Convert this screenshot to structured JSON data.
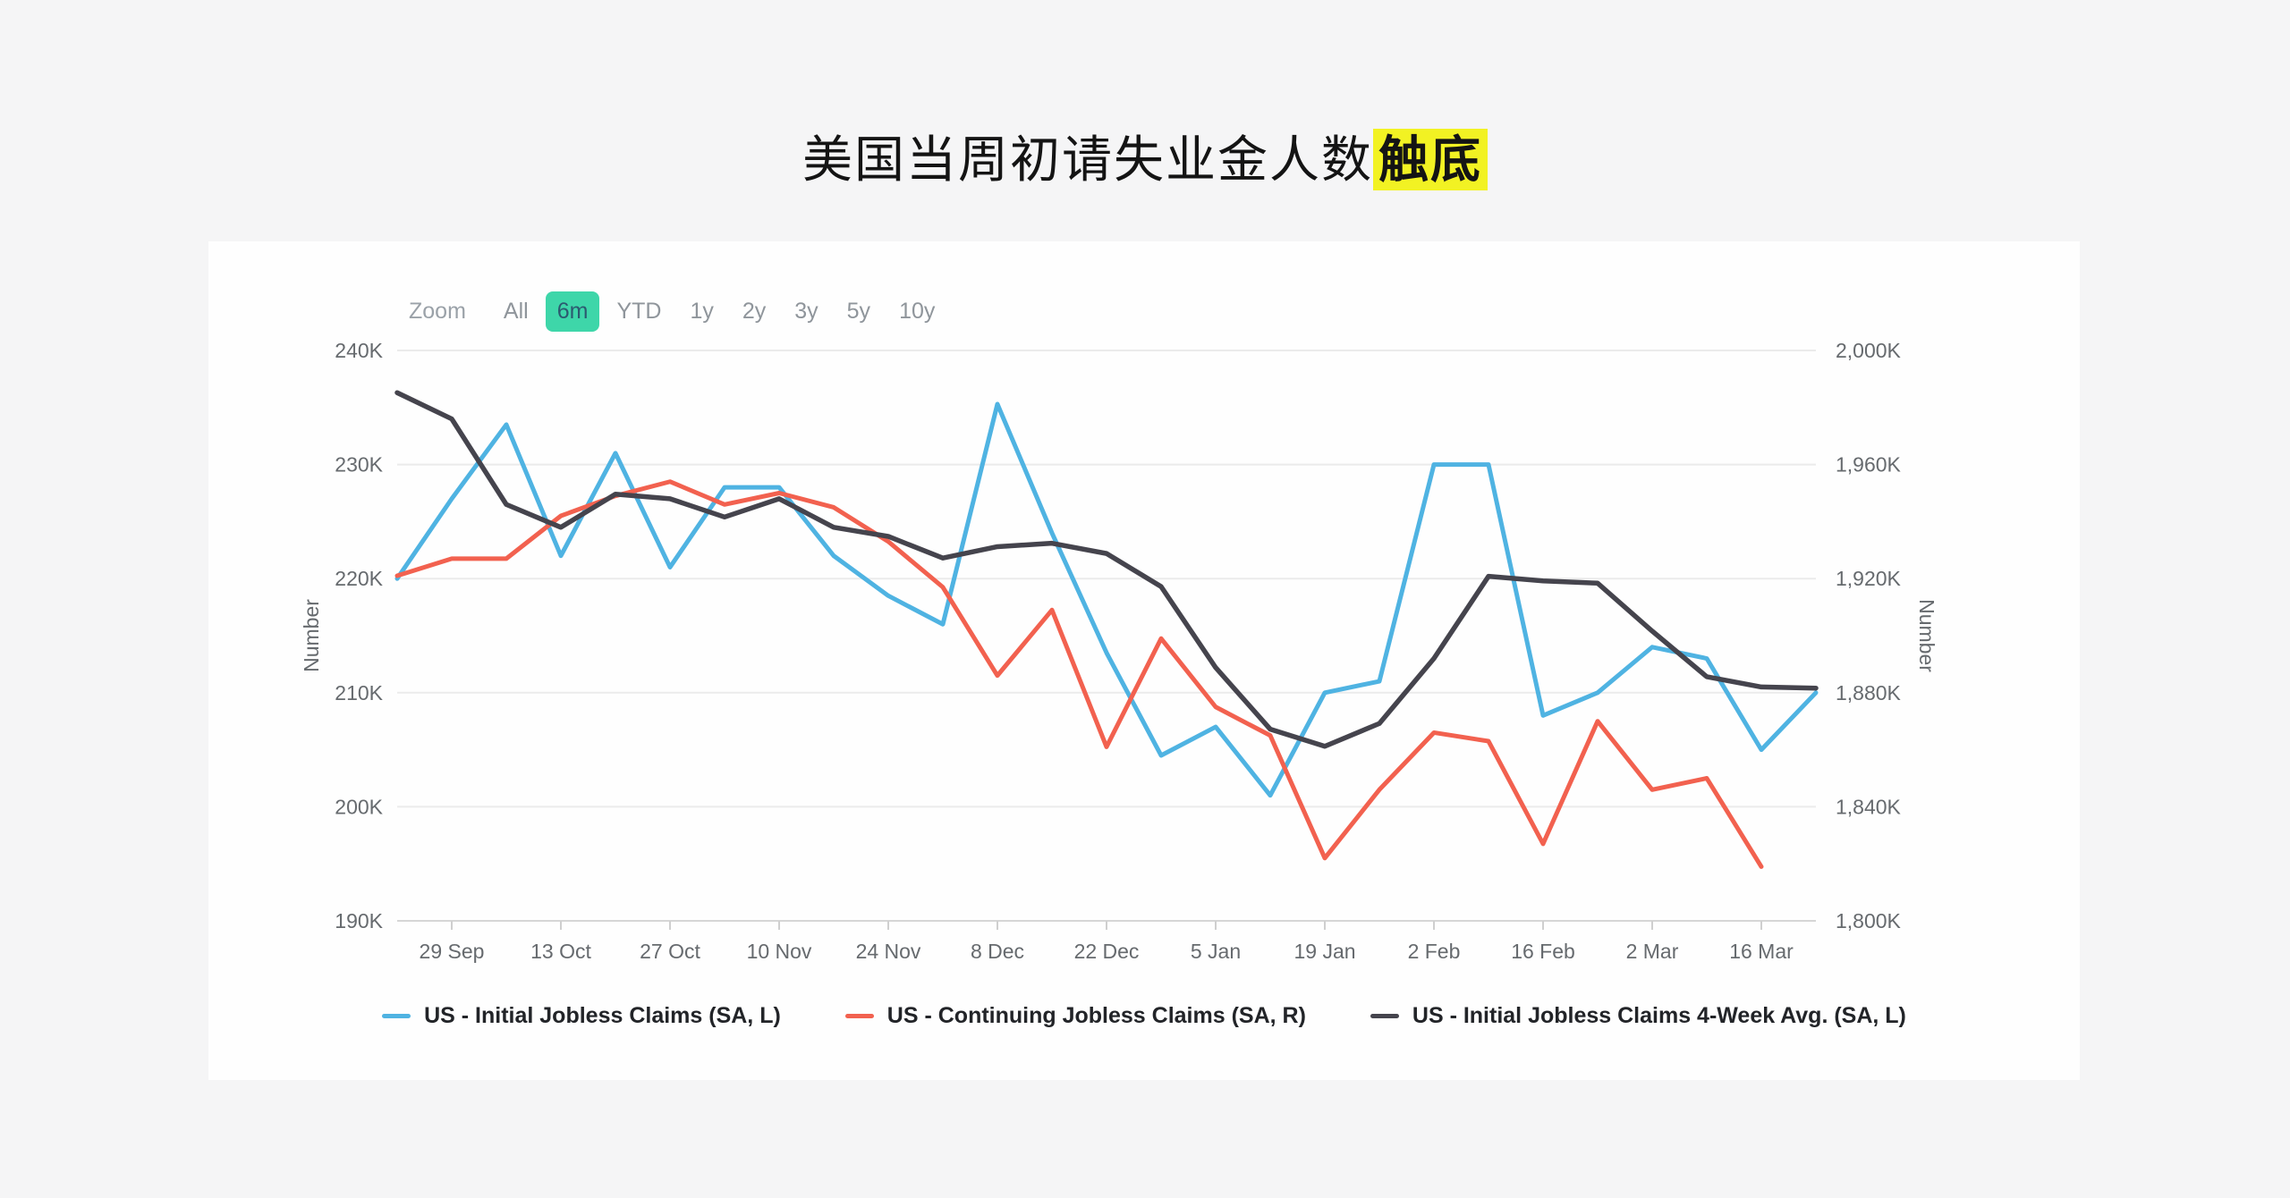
{
  "title": {
    "text": "美国当周初请失业金人数",
    "highlight": "触底",
    "highlight_color": "#f2f223"
  },
  "toolbar": {
    "zoom_label": "Zoom",
    "ranges": [
      "All",
      "6m",
      "YTD",
      "1y",
      "2y",
      "3y",
      "5y",
      "10y"
    ],
    "active": "6m",
    "active_color": "#3ed6a9"
  },
  "chart_data": {
    "type": "line",
    "x_dates": [
      "22 Sep",
      "29 Sep",
      "6 Oct",
      "13 Oct",
      "20 Oct",
      "27 Oct",
      "3 Nov",
      "10 Nov",
      "17 Nov",
      "24 Nov",
      "1 Dec",
      "8 Dec",
      "15 Dec",
      "22 Dec",
      "29 Dec",
      "5 Jan",
      "12 Jan",
      "19 Jan",
      "26 Jan",
      "2 Feb",
      "9 Feb",
      "16 Feb",
      "23 Feb",
      "2 Mar",
      "9 Mar",
      "16 Mar",
      "23 Mar"
    ],
    "x_tick_labels": [
      "29 Sep",
      "13 Oct",
      "27 Oct",
      "10 Nov",
      "24 Nov",
      "8 Dec",
      "22 Dec",
      "5 Jan",
      "19 Jan",
      "2 Feb",
      "16 Feb",
      "2 Mar",
      "16 Mar"
    ],
    "left_axis": {
      "title": "Number",
      "min": 190,
      "max": 240,
      "ticks": [
        "240K",
        "230K",
        "220K",
        "210K",
        "200K",
        "190K"
      ]
    },
    "right_axis": {
      "title": "Number",
      "min": 1800,
      "max": 2000,
      "ticks": [
        "2,000K",
        "1,960K",
        "1,920K",
        "1,880K",
        "1,840K",
        "1,800K"
      ]
    },
    "grid": "horizontal-only",
    "legend_position": "bottom-center",
    "series": [
      {
        "name": "US - Initial Jobless Claims (SA, L)",
        "axis": "left",
        "color": "#4fb3e2",
        "values": [
          220,
          227,
          233.5,
          222,
          231,
          221,
          228,
          228,
          222,
          218.5,
          216,
          235.3,
          224,
          213.5,
          204.5,
          207,
          201,
          210,
          211,
          230,
          230,
          208,
          210,
          214,
          213,
          205,
          210
        ]
      },
      {
        "name": "US - Continuing Jobless Claims (SA, R)",
        "axis": "right",
        "color": "#f2614f",
        "values": [
          1921,
          1927,
          1927,
          1942,
          1949,
          1954,
          1946,
          1950,
          1945,
          1933,
          1917,
          1886,
          1909,
          1861,
          1899,
          1875,
          1865,
          1822,
          1846,
          1866,
          1863,
          1827,
          1870,
          1846,
          1850,
          1819
        ]
      },
      {
        "name": "US - Initial Jobless Claims 4-Week Avg. (SA, L)",
        "axis": "left",
        "color": "#45444d",
        "values": [
          236.3,
          234,
          226.5,
          224.5,
          227.4,
          227,
          225.4,
          227,
          224.5,
          223.7,
          221.8,
          222.8,
          223.1,
          222.2,
          219.3,
          212.2,
          206.8,
          205.3,
          207.3,
          213,
          220.2,
          219.8,
          219.6,
          215.4,
          211.4,
          210.5,
          210.4
        ]
      }
    ]
  }
}
